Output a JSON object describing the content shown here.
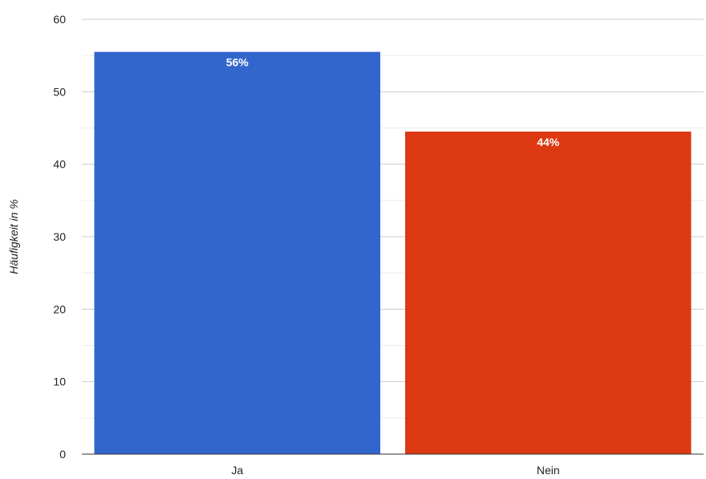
{
  "chart_data": {
    "type": "bar",
    "title": "",
    "xlabel": "",
    "ylabel": "Häufigkeit in %",
    "ylim": [
      0,
      60
    ],
    "yticks": [
      0,
      10,
      20,
      30,
      40,
      50,
      60
    ],
    "grid": true,
    "legend": "none",
    "categories": [
      "Ja",
      "Nein"
    ],
    "values": [
      55.5,
      44.5
    ],
    "data_labels": [
      "56%",
      "44%"
    ],
    "colors": [
      "#3366cc",
      "#dc3912"
    ]
  }
}
